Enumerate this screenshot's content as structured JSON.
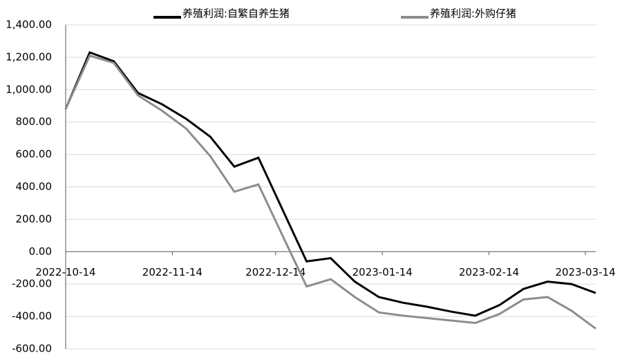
{
  "chart_data": {
    "type": "line",
    "x": [
      "2022-10-14",
      "2022-10-21",
      "2022-10-28",
      "2022-11-04",
      "2022-11-11",
      "2022-11-18",
      "2022-11-25",
      "2022-12-02",
      "2022-12-09",
      "2022-12-16",
      "2022-12-23",
      "2022-12-30",
      "2023-01-06",
      "2023-01-13",
      "2023-01-20",
      "2023-01-27",
      "2023-02-03",
      "2023-02-10",
      "2023-02-17",
      "2023-02-24",
      "2023-03-03",
      "2023-03-10",
      "2023-03-17"
    ],
    "series": [
      {
        "name": "养殖利润:自繁自养生猪",
        "color": "#000000",
        "values": [
          880,
          1230,
          1175,
          980,
          910,
          820,
          710,
          525,
          580,
          260,
          -60,
          -40,
          -185,
          -280,
          -315,
          -340,
          -370,
          -395,
          -330,
          -230,
          -185,
          -200,
          -255
        ]
      },
      {
        "name": "养殖利润:外购仔猪",
        "color": "#8c8c8c",
        "values": [
          880,
          1210,
          1165,
          965,
          870,
          760,
          590,
          370,
          415,
          100,
          -215,
          -170,
          -280,
          -375,
          -395,
          -410,
          -425,
          -440,
          -385,
          -295,
          -280,
          -365,
          -475
        ]
      }
    ],
    "xticks": [
      "2022-10-14",
      "2022-11-14",
      "2022-12-14",
      "2023-01-14",
      "2023-02-14",
      "2023-03-14"
    ],
    "ylim": [
      -600,
      1400
    ],
    "yticks": [
      {
        "value": -600,
        "label": "-600.00"
      },
      {
        "value": -400,
        "label": "-400.00"
      },
      {
        "value": -200,
        "label": "-200.00"
      },
      {
        "value": 0,
        "label": "0.00"
      },
      {
        "value": 200,
        "label": "200.00"
      },
      {
        "value": 400,
        "label": "400.00"
      },
      {
        "value": 600,
        "label": "600.00"
      },
      {
        "value": 800,
        "label": "800.00"
      },
      {
        "value": 1000,
        "label": "1,000.00"
      },
      {
        "value": 1200,
        "label": "1,200.00"
      },
      {
        "value": 1400,
        "label": "1,400.00"
      }
    ],
    "grid": true
  }
}
